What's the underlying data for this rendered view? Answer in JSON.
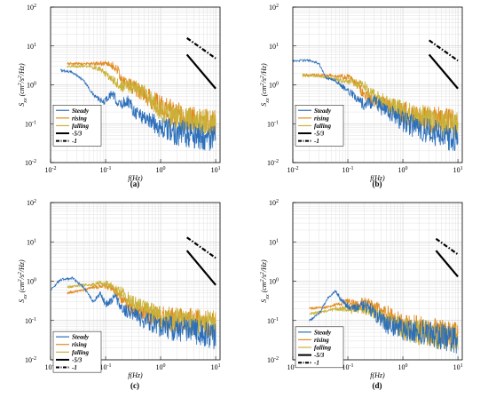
{
  "chart_data": [
    {
      "type": "line",
      "panel_label": "(a)",
      "xlabel": "f(Hz)",
      "ylabel": "S_xx (cm^2/s^2/Hz)",
      "xscale": "log",
      "yscale": "log",
      "xlim": [
        0.01,
        12
      ],
      "ylim": [
        0.01,
        100
      ],
      "legend": {
        "placement": "bottom-left",
        "entries": [
          "Steady",
          "rising",
          "falling",
          "-5/3",
          "-1"
        ]
      },
      "series": [
        {
          "name": "Steady",
          "color": "#2c6fbb",
          "points": [
            [
              0.015,
              2.4
            ],
            [
              0.025,
              2.1
            ],
            [
              0.04,
              1.3
            ],
            [
              0.06,
              0.55
            ],
            [
              0.09,
              0.35
            ],
            [
              0.13,
              0.6
            ],
            [
              0.18,
              0.3
            ],
            [
              0.25,
              0.4
            ],
            [
              0.35,
              0.2
            ],
            [
              0.5,
              0.15
            ],
            [
              0.8,
              0.1
            ],
            [
              1.2,
              0.07
            ],
            [
              2,
              0.06
            ],
            [
              4,
              0.05
            ],
            [
              10,
              0.04
            ]
          ]
        },
        {
          "name": "rising",
          "color": "#e08a1e",
          "points": [
            [
              0.02,
              3.5
            ],
            [
              0.05,
              3.5
            ],
            [
              0.1,
              3.5
            ],
            [
              0.15,
              3.0
            ],
            [
              0.2,
              1.4
            ],
            [
              0.3,
              0.9
            ],
            [
              0.5,
              0.6
            ],
            [
              0.8,
              0.35
            ],
            [
              1.5,
              0.2
            ],
            [
              3,
              0.13
            ],
            [
              10,
              0.1
            ]
          ]
        },
        {
          "name": "falling",
          "color": "#c9b23a",
          "points": [
            [
              0.02,
              3.0
            ],
            [
              0.05,
              3.0
            ],
            [
              0.08,
              2.5
            ],
            [
              0.12,
              1.5
            ],
            [
              0.2,
              0.9
            ],
            [
              0.3,
              0.9
            ],
            [
              0.5,
              0.7
            ],
            [
              0.8,
              0.3
            ],
            [
              1.5,
              0.15
            ],
            [
              3,
              0.12
            ],
            [
              10,
              0.1
            ]
          ]
        }
      ],
      "reference_lines": [
        {
          "name": "-5/3",
          "slope": -1.667,
          "x": [
            3.0,
            10.0
          ],
          "y": [
            6.0,
            0.8
          ]
        },
        {
          "name": "-1",
          "slope": -1.0,
          "x": [
            3.0,
            10.0
          ],
          "y": [
            16.0,
            4.8
          ]
        }
      ]
    },
    {
      "type": "line",
      "panel_label": "(b)",
      "xlabel": "f(Hz)",
      "ylabel": "S_xx (cm^2/s^2/Hz)",
      "xscale": "log",
      "yscale": "log",
      "xlim": [
        0.01,
        12
      ],
      "ylim": [
        0.01,
        100
      ],
      "legend": {
        "placement": "bottom-left",
        "entries": [
          "Steady",
          "rising",
          "falling",
          "-5/3",
          "-1"
        ]
      },
      "series": [
        {
          "name": "Steady",
          "color": "#2c6fbb",
          "points": [
            [
              0.01,
              4.2
            ],
            [
              0.02,
              4.2
            ],
            [
              0.03,
              3.5
            ],
            [
              0.04,
              1.5
            ],
            [
              0.06,
              1.3
            ],
            [
              0.08,
              0.9
            ],
            [
              0.12,
              0.6
            ],
            [
              0.2,
              0.3
            ],
            [
              0.3,
              0.4
            ],
            [
              0.5,
              0.2
            ],
            [
              1,
              0.12
            ],
            [
              2,
              0.08
            ],
            [
              5,
              0.05
            ],
            [
              10,
              0.04
            ]
          ]
        },
        {
          "name": "rising",
          "color": "#e08a1e",
          "points": [
            [
              0.015,
              1.8
            ],
            [
              0.03,
              1.8
            ],
            [
              0.06,
              1.7
            ],
            [
              0.1,
              1.6
            ],
            [
              0.15,
              1.0
            ],
            [
              0.2,
              0.5
            ],
            [
              0.3,
              0.4
            ],
            [
              0.5,
              0.3
            ],
            [
              1,
              0.2
            ],
            [
              2,
              0.15
            ],
            [
              5,
              0.12
            ],
            [
              10,
              0.1
            ]
          ]
        },
        {
          "name": "falling",
          "color": "#c9b23a",
          "points": [
            [
              0.015,
              1.7
            ],
            [
              0.03,
              1.7
            ],
            [
              0.06,
              1.4
            ],
            [
              0.1,
              1.2
            ],
            [
              0.15,
              1.1
            ],
            [
              0.2,
              0.9
            ],
            [
              0.3,
              0.5
            ],
            [
              0.6,
              0.3
            ],
            [
              1,
              0.2
            ],
            [
              2,
              0.15
            ],
            [
              5,
              0.1
            ],
            [
              10,
              0.1
            ]
          ]
        }
      ],
      "reference_lines": [
        {
          "name": "-5/3",
          "slope": -1.667,
          "x": [
            3.0,
            10.0
          ],
          "y": [
            6.0,
            0.8
          ]
        },
        {
          "name": "-1",
          "slope": -1.0,
          "x": [
            3.0,
            10.0
          ],
          "y": [
            14.0,
            4.2
          ]
        }
      ]
    },
    {
      "type": "line",
      "panel_label": "(c)",
      "xlabel": "f(Hz)",
      "ylabel": "S_xx (cm^2/s^2/Hz)",
      "xscale": "log",
      "yscale": "log",
      "xlim": [
        0.01,
        12
      ],
      "ylim": [
        0.01,
        100
      ],
      "legend": {
        "placement": "bottom-left",
        "entries": [
          "Steady",
          "rising",
          "falling",
          "-5/3",
          "-1"
        ]
      },
      "series": [
        {
          "name": "Steady",
          "color": "#2c6fbb",
          "points": [
            [
              0.01,
              0.6
            ],
            [
              0.015,
              1.1
            ],
            [
              0.025,
              1.2
            ],
            [
              0.04,
              0.7
            ],
            [
              0.06,
              0.3
            ],
            [
              0.08,
              0.5
            ],
            [
              0.1,
              0.25
            ],
            [
              0.15,
              0.4
            ],
            [
              0.2,
              0.2
            ],
            [
              0.3,
              0.15
            ],
            [
              0.5,
              0.1
            ],
            [
              1,
              0.07
            ],
            [
              2,
              0.06
            ],
            [
              5,
              0.05
            ],
            [
              10,
              0.04
            ]
          ]
        },
        {
          "name": "rising",
          "color": "#e08a1e",
          "points": [
            [
              0.02,
              0.5
            ],
            [
              0.04,
              0.6
            ],
            [
              0.06,
              0.7
            ],
            [
              0.1,
              0.8
            ],
            [
              0.15,
              0.6
            ],
            [
              0.2,
              0.35
            ],
            [
              0.3,
              0.2
            ],
            [
              0.5,
              0.15
            ],
            [
              1,
              0.12
            ],
            [
              2,
              0.1
            ],
            [
              5,
              0.09
            ],
            [
              10,
              0.08
            ]
          ]
        },
        {
          "name": "falling",
          "color": "#c9b23a",
          "points": [
            [
              0.02,
              0.7
            ],
            [
              0.04,
              0.8
            ],
            [
              0.06,
              0.8
            ],
            [
              0.08,
              0.9
            ],
            [
              0.12,
              0.8
            ],
            [
              0.2,
              0.5
            ],
            [
              0.3,
              0.3
            ],
            [
              0.5,
              0.2
            ],
            [
              1,
              0.12
            ],
            [
              2,
              0.1
            ],
            [
              5,
              0.09
            ],
            [
              10,
              0.08
            ]
          ]
        }
      ],
      "reference_lines": [
        {
          "name": "-5/3",
          "slope": -1.667,
          "x": [
            3.0,
            10.0
          ],
          "y": [
            6.0,
            0.8
          ]
        },
        {
          "name": "-1",
          "slope": -1.0,
          "x": [
            3.0,
            10.0
          ],
          "y": [
            13.0,
            3.9
          ]
        }
      ]
    },
    {
      "type": "line",
      "panel_label": "(d)",
      "xlabel": "f(Hz)",
      "ylabel": "S_xx (cm^2/s^2/Hz)",
      "xscale": "log",
      "yscale": "log",
      "xlim": [
        0.01,
        12
      ],
      "ylim": [
        0.01,
        100
      ],
      "legend": {
        "placement": "bottom-left",
        "entries": [
          "Steady",
          "rising",
          "falling",
          "-5/3",
          "-1"
        ]
      },
      "series": [
        {
          "name": "Steady",
          "color": "#2c6fbb",
          "points": [
            [
              0.02,
              0.1
            ],
            [
              0.03,
              0.15
            ],
            [
              0.045,
              0.4
            ],
            [
              0.06,
              0.55
            ],
            [
              0.08,
              0.3
            ],
            [
              0.12,
              0.2
            ],
            [
              0.2,
              0.25
            ],
            [
              0.3,
              0.15
            ],
            [
              0.5,
              0.08
            ],
            [
              1,
              0.06
            ],
            [
              2,
              0.05
            ],
            [
              5,
              0.04
            ],
            [
              10,
              0.03
            ]
          ]
        },
        {
          "name": "rising",
          "color": "#e08a1e",
          "points": [
            [
              0.02,
              0.2
            ],
            [
              0.04,
              0.22
            ],
            [
              0.06,
              0.25
            ],
            [
              0.1,
              0.3
            ],
            [
              0.15,
              0.25
            ],
            [
              0.2,
              0.3
            ],
            [
              0.3,
              0.2
            ],
            [
              0.5,
              0.15
            ],
            [
              1,
              0.08
            ],
            [
              2,
              0.06
            ],
            [
              5,
              0.05
            ],
            [
              10,
              0.04
            ]
          ]
        },
        {
          "name": "falling",
          "color": "#c9b23a",
          "points": [
            [
              0.02,
              0.15
            ],
            [
              0.04,
              0.17
            ],
            [
              0.06,
              0.2
            ],
            [
              0.1,
              0.2
            ],
            [
              0.15,
              0.18
            ],
            [
              0.2,
              0.2
            ],
            [
              0.3,
              0.15
            ],
            [
              0.5,
              0.1
            ],
            [
              1,
              0.06
            ],
            [
              2,
              0.05
            ],
            [
              5,
              0.04
            ],
            [
              10,
              0.035
            ]
          ]
        }
      ],
      "reference_lines": [
        {
          "name": "-5/3",
          "slope": -1.667,
          "x": [
            4.0,
            10.0
          ],
          "y": [
            6.0,
            1.3
          ]
        },
        {
          "name": "-1",
          "slope": -1.0,
          "x": [
            4.0,
            10.0
          ],
          "y": [
            12.0,
            4.8
          ]
        }
      ]
    }
  ]
}
